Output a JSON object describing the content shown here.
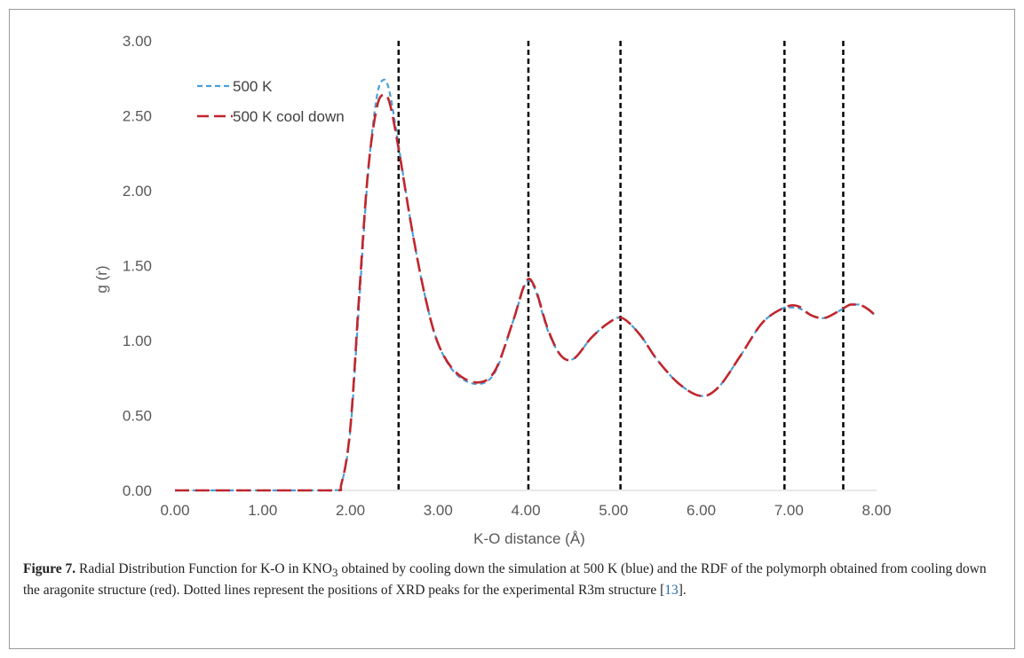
{
  "chart_data": {
    "type": "line",
    "ylabel": "g (r)",
    "xlabel": "K-O distance (Å)",
    "xlim": [
      0,
      8
    ],
    "ylim": [
      0,
      3
    ],
    "x_ticks": [
      "0.00",
      "1.00",
      "2.00",
      "3.00",
      "4.00",
      "5.00",
      "6.00",
      "7.00",
      "8.00"
    ],
    "y_ticks": [
      "0.00",
      "0.50",
      "1.00",
      "1.50",
      "2.00",
      "2.50",
      "3.00"
    ],
    "grid": false,
    "legend_position": "top-left",
    "series": [
      {
        "name": "500 K",
        "color": "#4a9fd8",
        "dash": "short-dash",
        "x": [
          0,
          1.0,
          1.8,
          1.9,
          2.0,
          2.1,
          2.2,
          2.3,
          2.38,
          2.45,
          2.55,
          2.7,
          2.85,
          3.0,
          3.2,
          3.45,
          3.65,
          3.85,
          4.0,
          4.1,
          4.25,
          4.4,
          4.55,
          4.75,
          4.95,
          5.1,
          5.3,
          5.5,
          5.75,
          6.0,
          6.2,
          6.45,
          6.7,
          6.95,
          7.1,
          7.25,
          7.4,
          7.55,
          7.7,
          7.8,
          7.9,
          8.0
        ],
        "y": [
          0,
          0,
          0,
          0.05,
          0.4,
          1.25,
          2.1,
          2.62,
          2.74,
          2.65,
          2.3,
          1.75,
          1.3,
          0.98,
          0.78,
          0.71,
          0.79,
          1.12,
          1.38,
          1.35,
          1.07,
          0.9,
          0.88,
          1.02,
          1.12,
          1.15,
          1.04,
          0.87,
          0.71,
          0.63,
          0.69,
          0.9,
          1.12,
          1.22,
          1.22,
          1.17,
          1.15,
          1.19,
          1.24,
          1.24,
          1.21,
          1.16
        ]
      },
      {
        "name": "500 K cool down",
        "color": "#c0262d",
        "dash": "long-dash",
        "x": [
          0,
          1.0,
          1.8,
          1.9,
          2.0,
          2.1,
          2.2,
          2.3,
          2.38,
          2.45,
          2.55,
          2.7,
          2.85,
          3.0,
          3.2,
          3.45,
          3.65,
          3.85,
          4.0,
          4.1,
          4.25,
          4.4,
          4.55,
          4.75,
          4.95,
          5.1,
          5.3,
          5.5,
          5.75,
          6.0,
          6.2,
          6.45,
          6.7,
          6.95,
          7.1,
          7.25,
          7.4,
          7.55,
          7.7,
          7.8,
          7.9,
          8.0
        ],
        "y": [
          0,
          0,
          0,
          0.05,
          0.42,
          1.3,
          2.12,
          2.55,
          2.64,
          2.58,
          2.28,
          1.75,
          1.3,
          0.98,
          0.79,
          0.72,
          0.8,
          1.12,
          1.39,
          1.36,
          1.08,
          0.9,
          0.88,
          1.02,
          1.12,
          1.15,
          1.04,
          0.87,
          0.71,
          0.63,
          0.69,
          0.9,
          1.12,
          1.22,
          1.23,
          1.17,
          1.15,
          1.19,
          1.24,
          1.24,
          1.21,
          1.16
        ]
      }
    ],
    "reference_lines": {
      "style": "dotted",
      "color": "#000000",
      "x": [
        2.55,
        4.03,
        5.08,
        6.95,
        7.62
      ]
    }
  },
  "caption": {
    "label": "Figure 7.",
    "text_1": " Radial Distribution Function for K-O in KNO",
    "subscript": "3",
    "text_2": " obtained by cooling down the simulation at 500 K (blue) and the RDF of the polymorph obtained from cooling down the aragonite structure (red). Dotted lines represent the positions of XRD peaks for the experimental R3m structure [",
    "ref": "13",
    "text_3": "]."
  }
}
